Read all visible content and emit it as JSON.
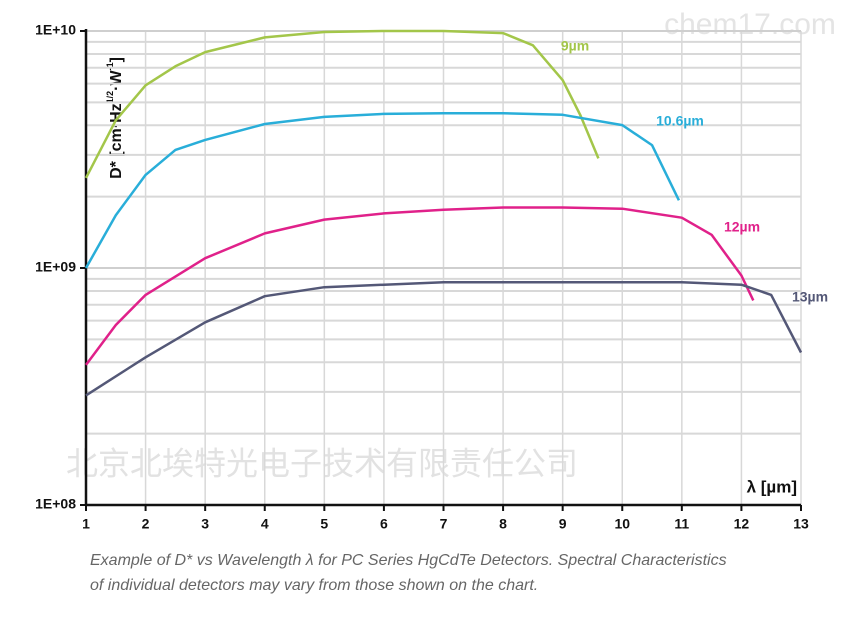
{
  "chart_data": {
    "type": "line",
    "y_label": {
      "main": "D* [cm·Hz",
      "exp1": "1/2",
      "mid": "·W",
      "exp2": "-1",
      "end": "]"
    },
    "x_label": "λ [µm]",
    "y_log": true,
    "grid": true,
    "xlim": [
      1,
      13
    ],
    "xticks": [
      1,
      2,
      3,
      4,
      5,
      6,
      7,
      8,
      9,
      10,
      11,
      12,
      13
    ],
    "ylim": [
      100000000,
      10000000000
    ],
    "yticks": [
      {
        "value": 100000000,
        "label": "1E+08"
      },
      {
        "value": 1000000000,
        "label": "1E+09"
      },
      {
        "value": 10000000000,
        "label": "1E+10"
      }
    ],
    "y_minor_ticks": [
      200000000,
      300000000,
      400000000,
      500000000,
      600000000,
      700000000,
      800000000,
      900000000,
      2000000000,
      3000000000,
      4000000000,
      5000000000,
      6000000000,
      7000000000,
      8000000000,
      9000000000
    ],
    "series": [
      {
        "name": "9µm",
        "color": "#a3c64a",
        "x": [
          1,
          1.5,
          2,
          2.5,
          3,
          4,
          5,
          6,
          7,
          8,
          8.5,
          9,
          9.3,
          9.6
        ],
        "values": [
          2400000000,
          4200000000,
          5900000000,
          7100000000,
          8150000000,
          9400000000,
          9900000000,
          10000000000,
          10000000000,
          9800000000,
          8700000000,
          6200000000,
          4400000000,
          2900000000
        ]
      },
      {
        "name": "10.6µm",
        "color": "#29aed9",
        "x": [
          1,
          1.5,
          2,
          2.5,
          3,
          4,
          5,
          6,
          7,
          8,
          9,
          10,
          10.5,
          10.95
        ],
        "values": [
          1000000000,
          1670000000,
          2470000000,
          3150000000,
          3470000000,
          4050000000,
          4340000000,
          4470000000,
          4500000000,
          4500000000,
          4430000000,
          4010000000,
          3300000000,
          1930000000
        ]
      },
      {
        "name": "12µm",
        "color": "#e0218a",
        "x": [
          1,
          1.5,
          2,
          3,
          4,
          5,
          6,
          7,
          8,
          9,
          10,
          11,
          11.5,
          12,
          12.2
        ],
        "values": [
          390000000,
          575000000,
          770000000,
          1100000000,
          1400000000,
          1600000000,
          1700000000,
          1760000000,
          1800000000,
          1800000000,
          1780000000,
          1630000000,
          1380000000,
          930000000,
          730000000
        ]
      },
      {
        "name": "13µm",
        "color": "#545877",
        "x": [
          1,
          2,
          3,
          4,
          5,
          6,
          7,
          8,
          9,
          10,
          11,
          12,
          12.5,
          13
        ],
        "values": [
          290000000,
          420000000,
          590000000,
          760000000,
          830000000,
          850000000,
          870000000,
          870000000,
          870000000,
          870000000,
          870000000,
          850000000,
          770000000,
          440000000
        ]
      }
    ],
    "caption": [
      "Example of D* vs Wavelength λ for PC Series HgCdTe Detectors. Spectral Characteristics",
      "of individual detectors may vary from those shown on the chart."
    ],
    "watermarks": [
      "chem17.com",
      "北京北埃特光电子技术有限责任公司"
    ]
  }
}
